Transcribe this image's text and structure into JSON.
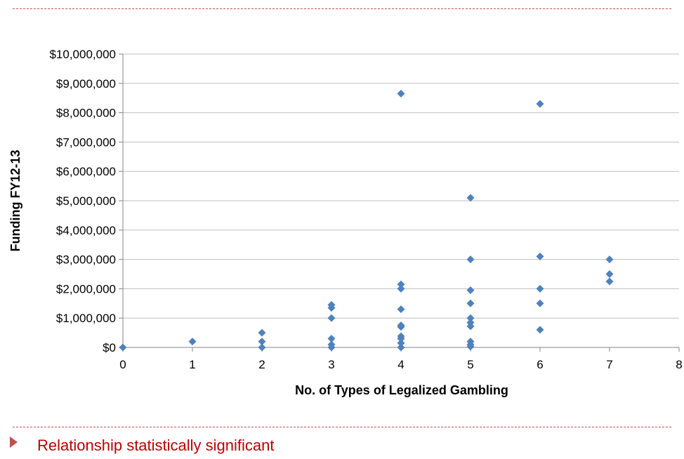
{
  "slide": {
    "bullet_text": "Relationship statistically significant"
  },
  "colors": {
    "marker": "#4f81bd",
    "accent": "#c0504d",
    "bullet_text": "#c00000",
    "gridline": "#bfbfbf"
  },
  "chart_data": {
    "type": "scatter",
    "xlabel": "No. of Types of Legalized Gambling",
    "ylabel": "Funding FY12-13",
    "xlim": [
      0,
      8
    ],
    "ylim": [
      0,
      10000000
    ],
    "x_ticks": [
      0,
      1,
      2,
      3,
      4,
      5,
      6,
      7,
      8
    ],
    "y_ticks": [
      0,
      1000000,
      2000000,
      3000000,
      4000000,
      5000000,
      6000000,
      7000000,
      8000000,
      9000000,
      10000000
    ],
    "y_tick_labels": [
      "$0",
      "$1,000,000",
      "$2,000,000",
      "$3,000,000",
      "$4,000,000",
      "$5,000,000",
      "$6,000,000",
      "$7,000,000",
      "$8,000,000",
      "$9,000,000",
      "$10,000,000"
    ],
    "grid": "horizontal",
    "legend": "none",
    "marker": "diamond",
    "points": [
      {
        "x": 0,
        "y": 0
      },
      {
        "x": 1,
        "y": 200000
      },
      {
        "x": 2,
        "y": 500000
      },
      {
        "x": 2,
        "y": 200000
      },
      {
        "x": 2,
        "y": 0
      },
      {
        "x": 3,
        "y": 1450000
      },
      {
        "x": 3,
        "y": 1350000
      },
      {
        "x": 3,
        "y": 1000000
      },
      {
        "x": 3,
        "y": 300000
      },
      {
        "x": 3,
        "y": 100000
      },
      {
        "x": 3,
        "y": 0
      },
      {
        "x": 4,
        "y": 8650000
      },
      {
        "x": 4,
        "y": 2150000
      },
      {
        "x": 4,
        "y": 2000000
      },
      {
        "x": 4,
        "y": 1300000
      },
      {
        "x": 4,
        "y": 750000
      },
      {
        "x": 4,
        "y": 700000
      },
      {
        "x": 4,
        "y": 380000
      },
      {
        "x": 4,
        "y": 300000
      },
      {
        "x": 4,
        "y": 150000
      },
      {
        "x": 4,
        "y": 0
      },
      {
        "x": 5,
        "y": 5100000
      },
      {
        "x": 5,
        "y": 3000000
      },
      {
        "x": 5,
        "y": 1950000
      },
      {
        "x": 5,
        "y": 1500000
      },
      {
        "x": 5,
        "y": 1000000
      },
      {
        "x": 5,
        "y": 850000
      },
      {
        "x": 5,
        "y": 720000
      },
      {
        "x": 5,
        "y": 200000
      },
      {
        "x": 5,
        "y": 100000
      },
      {
        "x": 5,
        "y": 30000
      },
      {
        "x": 6,
        "y": 8300000
      },
      {
        "x": 6,
        "y": 3100000
      },
      {
        "x": 6,
        "y": 2000000
      },
      {
        "x": 6,
        "y": 1500000
      },
      {
        "x": 6,
        "y": 600000
      },
      {
        "x": 7,
        "y": 3000000
      },
      {
        "x": 7,
        "y": 2500000
      },
      {
        "x": 7,
        "y": 2250000
      }
    ]
  }
}
